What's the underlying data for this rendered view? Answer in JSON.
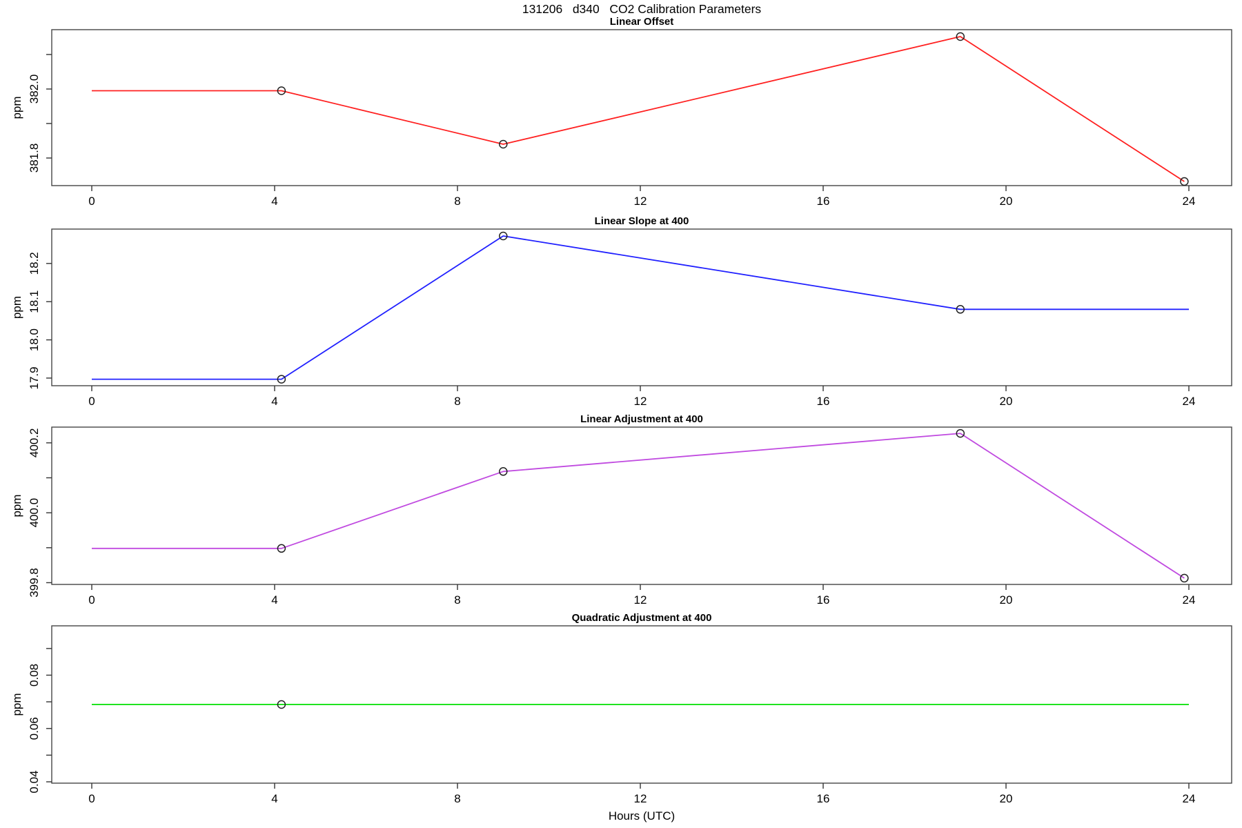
{
  "title": "131206   d340   CO2 Calibration Parameters",
  "chart_data": {
    "type": "line",
    "title": "131206   d340   CO2 Calibration Parameters",
    "xlabel": "Hours (UTC)",
    "xlim": [
      -0.875,
      24.94
    ],
    "grid": false,
    "legend": "none",
    "marker_style": "open-circle",
    "xticks": [
      {
        "v": 0,
        "label": "0"
      },
      {
        "v": 4,
        "label": "4"
      },
      {
        "v": 8,
        "label": "8"
      },
      {
        "v": 12,
        "label": "12"
      },
      {
        "v": 16,
        "label": "16"
      },
      {
        "v": 20,
        "label": "20"
      },
      {
        "v": 24,
        "label": "24"
      }
    ],
    "panels": [
      {
        "title": "Linear Offset",
        "ylabel": "ppm",
        "color": "#ff2020",
        "ylim": [
          381.72,
          382.172
        ],
        "yticks": [
          {
            "v": 381.8,
            "label": "381.8"
          },
          {
            "v": 381.9,
            "label": ""
          },
          {
            "v": 382.0,
            "label": "382.0"
          },
          {
            "v": 382.1,
            "label": ""
          }
        ],
        "line": [
          [
            0,
            381.995
          ],
          [
            4.15,
            381.995
          ],
          [
            9.0,
            381.84
          ],
          [
            19.0,
            382.152
          ],
          [
            23.9,
            381.732
          ]
        ],
        "markers": [
          [
            4.15,
            381.995
          ],
          [
            9.0,
            381.84
          ],
          [
            19.0,
            382.152
          ],
          [
            23.9,
            381.732
          ]
        ]
      },
      {
        "title": "Linear Slope at 400",
        "ylabel": "ppm",
        "color": "#2020ff",
        "ylim": [
          17.88,
          18.29
        ],
        "yticks": [
          {
            "v": 17.9,
            "label": "17.9"
          },
          {
            "v": 18.0,
            "label": "18.0"
          },
          {
            "v": 18.1,
            "label": "18.1"
          },
          {
            "v": 18.2,
            "label": "18.2"
          }
        ],
        "line": [
          [
            0,
            17.897
          ],
          [
            4.15,
            17.897
          ],
          [
            9.0,
            18.272
          ],
          [
            19.0,
            18.08
          ],
          [
            24,
            18.08
          ]
        ],
        "markers": [
          [
            4.15,
            17.897
          ],
          [
            9.0,
            18.272
          ],
          [
            19.0,
            18.08
          ]
        ]
      },
      {
        "title": "Linear Adjustment at 400",
        "ylabel": "ppm",
        "color": "#c04ae0",
        "ylim": [
          399.795,
          400.245
        ],
        "yticks": [
          {
            "v": 399.8,
            "label": "399.8"
          },
          {
            "v": 399.9,
            "label": ""
          },
          {
            "v": 400.0,
            "label": "400.0"
          },
          {
            "v": 400.1,
            "label": ""
          },
          {
            "v": 400.2,
            "label": "400.2"
          }
        ],
        "line": [
          [
            0,
            399.898
          ],
          [
            4.15,
            399.898
          ],
          [
            9.0,
            400.118
          ],
          [
            19.0,
            400.227
          ],
          [
            23.9,
            399.813
          ]
        ],
        "markers": [
          [
            4.15,
            399.898
          ],
          [
            9.0,
            400.118
          ],
          [
            19.0,
            400.227
          ],
          [
            23.9,
            399.813
          ]
        ]
      },
      {
        "title": "Quadratic Adjustment at 400",
        "ylabel": "ppm",
        "color": "#00e000",
        "ylim": [
          0.0395,
          0.0985
        ],
        "yticks": [
          {
            "v": 0.04,
            "label": "0.04"
          },
          {
            "v": 0.05,
            "label": ""
          },
          {
            "v": 0.06,
            "label": "0.06"
          },
          {
            "v": 0.07,
            "label": ""
          },
          {
            "v": 0.08,
            "label": "0.08"
          },
          {
            "v": 0.09,
            "label": ""
          }
        ],
        "line": [
          [
            0,
            0.069
          ],
          [
            24,
            0.069
          ]
        ],
        "markers": [
          [
            4.15,
            0.069
          ]
        ]
      }
    ]
  }
}
